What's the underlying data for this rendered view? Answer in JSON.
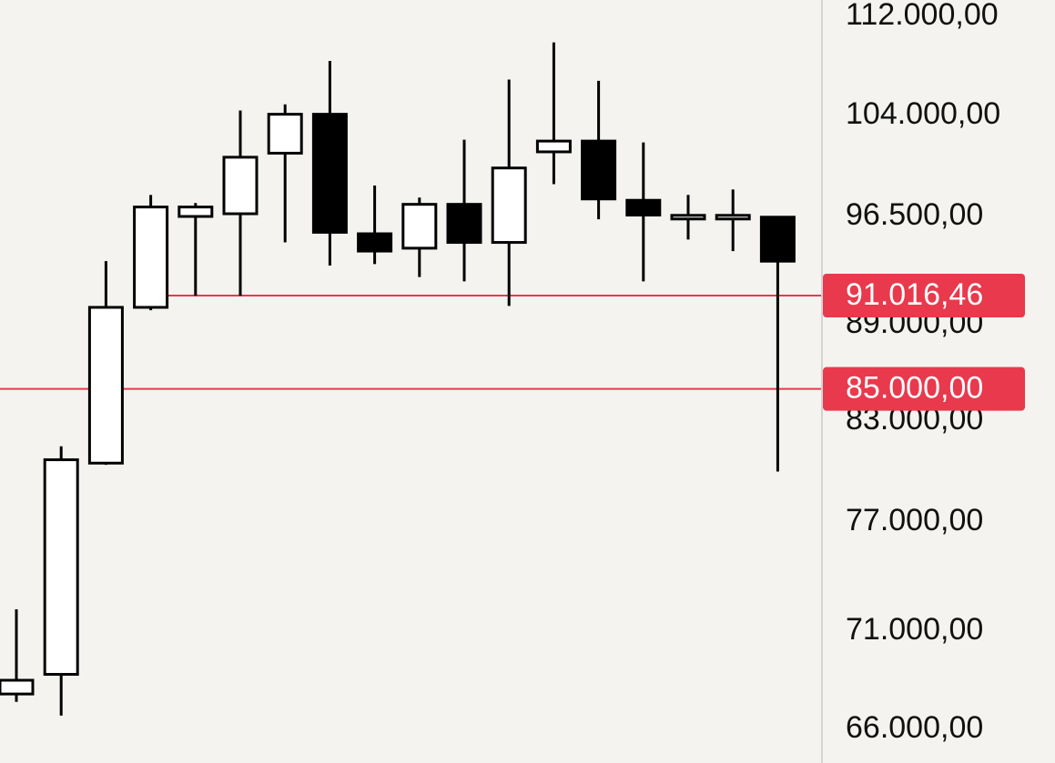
{
  "chart_data": {
    "type": "candlestick",
    "title": "",
    "xlabel": "",
    "ylabel": "",
    "y_axis_position": "right",
    "y_ticks": [
      {
        "value": 112000,
        "label": "112.000,00"
      },
      {
        "value": 104000,
        "label": "104.000,00"
      },
      {
        "value": 96500,
        "label": "96.500,00"
      },
      {
        "value": 89000,
        "label": "89.000,00"
      },
      {
        "value": 83000,
        "label": "83.000,00"
      },
      {
        "value": 77000,
        "label": "77.000,00"
      },
      {
        "value": 71000,
        "label": "71.000,00"
      },
      {
        "value": 66000,
        "label": "66.000,00"
      }
    ],
    "grid": false,
    "candles": [
      {
        "open": 67800,
        "high": 72200,
        "low": 67400,
        "close": 68500
      },
      {
        "open": 68800,
        "high": 81500,
        "low": 66700,
        "close": 80700
      },
      {
        "open": 80500,
        "high": 93400,
        "low": 80400,
        "close": 90200
      },
      {
        "open": 90200,
        "high": 98100,
        "low": 90000,
        "close": 97200
      },
      {
        "open": 96500,
        "high": 97500,
        "low": 91000,
        "close": 97200
      },
      {
        "open": 96700,
        "high": 104400,
        "low": 91000,
        "close": 100900
      },
      {
        "open": 101200,
        "high": 104900,
        "low": 94700,
        "close": 104100
      },
      {
        "open": 104100,
        "high": 108400,
        "low": 93100,
        "close": 95400
      },
      {
        "open": 95300,
        "high": 98800,
        "low": 93200,
        "close": 94100
      },
      {
        "open": 94300,
        "high": 97900,
        "low": 92300,
        "close": 97400
      },
      {
        "open": 97400,
        "high": 102200,
        "low": 92000,
        "close": 94700
      },
      {
        "open": 94700,
        "high": 106900,
        "low": 90300,
        "close": 100100
      },
      {
        "open": 101300,
        "high": 109900,
        "low": 98900,
        "close": 102100
      },
      {
        "open": 102100,
        "high": 106800,
        "low": 96300,
        "close": 97800
      },
      {
        "open": 97700,
        "high": 102000,
        "low": 92000,
        "close": 96600
      },
      {
        "open": 96450,
        "high": 98100,
        "low": 94900,
        "close": 96450
      },
      {
        "open": 96450,
        "high": 98500,
        "low": 94100,
        "close": 96450
      },
      {
        "open": 96450,
        "high": 96450,
        "low": 80000,
        "close": 93400
      }
    ],
    "horizontal_lines": [
      {
        "value": 91016.46,
        "label": "91.016,46",
        "color": "#e8394d"
      },
      {
        "value": 85000,
        "label": "85.000,00",
        "color": "#e8394d"
      }
    ],
    "colors": {
      "background": "#f4f3ef",
      "up_body": "#ffffff",
      "down_body": "#000000",
      "outline": "#000000",
      "marker": "#e8394d",
      "axis_separator": "#d4d4d4",
      "tick_text": "#111111",
      "marker_text": "#ffffff"
    }
  }
}
